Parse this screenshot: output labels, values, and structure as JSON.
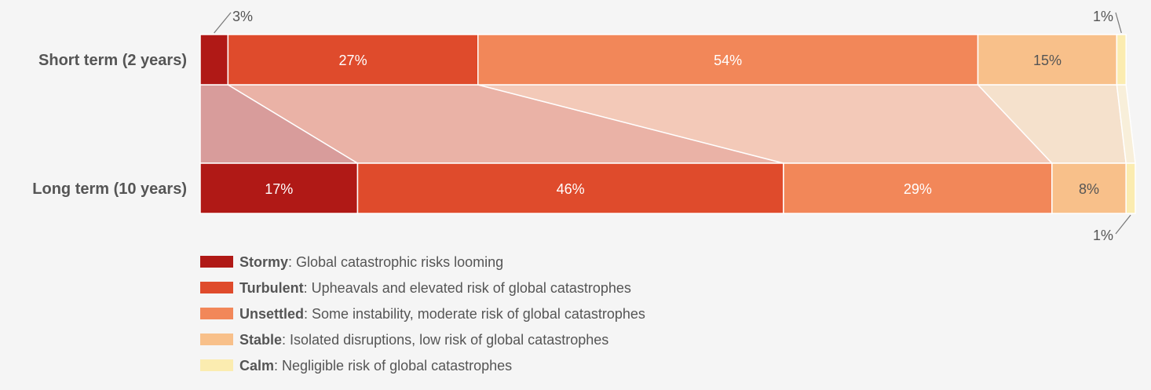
{
  "chart_data": {
    "type": "bar",
    "orientation": "horizontal",
    "stacked": "100%",
    "categories": [
      "Short term (2 years)",
      "Long term (10 years)"
    ],
    "series": [
      {
        "name": "Stormy",
        "description": ": Global catastrophic risks looming",
        "color": "#b01916",
        "values": [
          3,
          17
        ]
      },
      {
        "name": "Turbulent",
        "description": ": Upheavals and elevated risk of global catastrophes",
        "color": "#df4b2c",
        "values": [
          27,
          46
        ]
      },
      {
        "name": "Unsettled",
        "description": ": Some instability, moderate risk of global catastrophes",
        "color": "#f28759",
        "values": [
          54,
          29
        ]
      },
      {
        "name": "Stable",
        "description": ": Isolated disruptions, low risk of global catastrophes",
        "color": "#f8c08a",
        "values": [
          15,
          8
        ]
      },
      {
        "name": "Calm",
        "description": ": Negligible risk of global catastrophes",
        "color": "#fbecb0",
        "values": [
          1,
          1
        ]
      }
    ],
    "data_labels": [
      [
        "3%",
        "27%",
        "54%",
        "15%",
        "1%"
      ],
      [
        "17%",
        "46%",
        "29%",
        "8%",
        "1%"
      ]
    ],
    "connector_colors": [
      "#d89c9b",
      "#eab2a6",
      "#f3c9b8",
      "#f5e1cc",
      "#f8efda"
    ],
    "xlim": [
      0,
      101
    ],
    "legend_position": "bottom-left",
    "grid": false
  }
}
